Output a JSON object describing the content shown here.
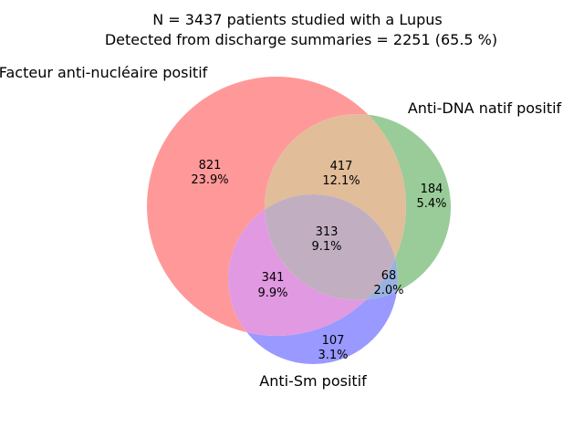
{
  "title": {
    "line1": "N = 3437 patients studied with a Lupus",
    "line2": "Detected from discharge summaries = 2251 (65.5 %)"
  },
  "sets": [
    {
      "key": "A",
      "label": "Facteur anti-nucléaire positif",
      "color": "#ff0000"
    },
    {
      "key": "B",
      "label": "Anti-DNA natif positif",
      "color": "#008000"
    },
    {
      "key": "C",
      "label": "Anti-Sm positif",
      "color": "#0000ff"
    }
  ],
  "region_colors": {
    "A_only": "#ff9999",
    "B_only": "#99cc99",
    "C_only": "#9999ff",
    "AB": "#e1bd99",
    "AC": "#e199e1",
    "BC": "#99b3e1",
    "ABC": "#c1afc1"
  },
  "regions": {
    "A_only": {
      "count": "821",
      "percent": "23.9%"
    },
    "B_only": {
      "count": "184",
      "percent": "5.4%"
    },
    "C_only": {
      "count": "107",
      "percent": "3.1%"
    },
    "AB": {
      "count": "417",
      "percent": "12.1%"
    },
    "AC": {
      "count": "341",
      "percent": "9.9%"
    },
    "BC": {
      "count": "68",
      "percent": "2.0%"
    },
    "ABC": {
      "count": "313",
      "percent": "9.1%"
    }
  }
}
